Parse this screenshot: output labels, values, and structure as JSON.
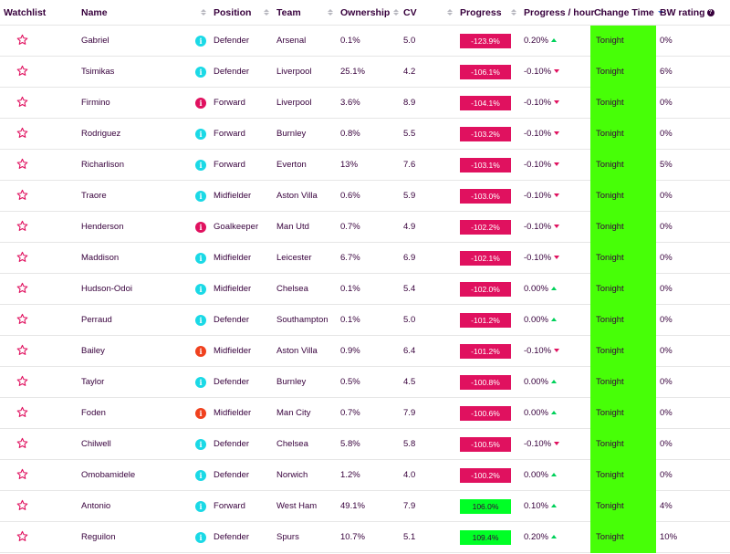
{
  "colors": {
    "neg_progress": "#e0115f",
    "pos_progress": "#00ff26",
    "change_time_bg": "#47ff07",
    "info_cyan": "#1ad9e6",
    "info_pink": "#e0115f",
    "info_orange": "#f0411e",
    "text": "#37003c"
  },
  "headers": {
    "watchlist": "Watchlist",
    "name": "Name",
    "position": "Position",
    "team": "Team",
    "ownership": "Ownership",
    "cv": "CV",
    "progress": "Progress",
    "progress_hour": "Progress / hour",
    "change_time": "Change Time",
    "bw_rating": "BW rating"
  },
  "rows": [
    {
      "name": "Gabriel",
      "info": "cyan",
      "position": "Defender",
      "team": "Arsenal",
      "ownership": "0.1%",
      "cv": "5.0",
      "progress": "-123.9%",
      "progress_sign": "neg",
      "progress_hour": "0.20%",
      "trend": "up",
      "change_time": "Tonight",
      "bw": "0%"
    },
    {
      "name": "Tsimikas",
      "info": "cyan",
      "position": "Defender",
      "team": "Liverpool",
      "ownership": "25.1%",
      "cv": "4.2",
      "progress": "-106.1%",
      "progress_sign": "neg",
      "progress_hour": "-0.10%",
      "trend": "down",
      "change_time": "Tonight",
      "bw": "6%"
    },
    {
      "name": "Firmino",
      "info": "pink",
      "position": "Forward",
      "team": "Liverpool",
      "ownership": "3.6%",
      "cv": "8.9",
      "progress": "-104.1%",
      "progress_sign": "neg",
      "progress_hour": "-0.10%",
      "trend": "down",
      "change_time": "Tonight",
      "bw": "0%"
    },
    {
      "name": "Rodriguez",
      "info": "cyan",
      "position": "Forward",
      "team": "Burnley",
      "ownership": "0.8%",
      "cv": "5.5",
      "progress": "-103.2%",
      "progress_sign": "neg",
      "progress_hour": "-0.10%",
      "trend": "down",
      "change_time": "Tonight",
      "bw": "0%"
    },
    {
      "name": "Richarlison",
      "info": "cyan",
      "position": "Forward",
      "team": "Everton",
      "ownership": "13%",
      "cv": "7.6",
      "progress": "-103.1%",
      "progress_sign": "neg",
      "progress_hour": "-0.10%",
      "trend": "down",
      "change_time": "Tonight",
      "bw": "5%"
    },
    {
      "name": "Traore",
      "info": "cyan",
      "position": "Midfielder",
      "team": "Aston Villa",
      "ownership": "0.6%",
      "cv": "5.9",
      "progress": "-103.0%",
      "progress_sign": "neg",
      "progress_hour": "-0.10%",
      "trend": "down",
      "change_time": "Tonight",
      "bw": "0%"
    },
    {
      "name": "Henderson",
      "info": "pink",
      "position": "Goalkeeper",
      "team": "Man Utd",
      "ownership": "0.7%",
      "cv": "4.9",
      "progress": "-102.2%",
      "progress_sign": "neg",
      "progress_hour": "-0.10%",
      "trend": "down",
      "change_time": "Tonight",
      "bw": "0%"
    },
    {
      "name": "Maddison",
      "info": "cyan",
      "position": "Midfielder",
      "team": "Leicester",
      "ownership": "6.7%",
      "cv": "6.9",
      "progress": "-102.1%",
      "progress_sign": "neg",
      "progress_hour": "-0.10%",
      "trend": "down",
      "change_time": "Tonight",
      "bw": "0%"
    },
    {
      "name": "Hudson-Odoi",
      "info": "cyan",
      "position": "Midfielder",
      "team": "Chelsea",
      "ownership": "0.1%",
      "cv": "5.4",
      "progress": "-102.0%",
      "progress_sign": "neg",
      "progress_hour": "0.00%",
      "trend": "up",
      "change_time": "Tonight",
      "bw": "0%"
    },
    {
      "name": "Perraud",
      "info": "cyan",
      "position": "Defender",
      "team": "Southampton",
      "ownership": "0.1%",
      "cv": "5.0",
      "progress": "-101.2%",
      "progress_sign": "neg",
      "progress_hour": "0.00%",
      "trend": "up",
      "change_time": "Tonight",
      "bw": "0%"
    },
    {
      "name": "Bailey",
      "info": "orange",
      "position": "Midfielder",
      "team": "Aston Villa",
      "ownership": "0.9%",
      "cv": "6.4",
      "progress": "-101.2%",
      "progress_sign": "neg",
      "progress_hour": "-0.10%",
      "trend": "down",
      "change_time": "Tonight",
      "bw": "0%"
    },
    {
      "name": "Taylor",
      "info": "cyan",
      "position": "Defender",
      "team": "Burnley",
      "ownership": "0.5%",
      "cv": "4.5",
      "progress": "-100.8%",
      "progress_sign": "neg",
      "progress_hour": "0.00%",
      "trend": "up",
      "change_time": "Tonight",
      "bw": "0%"
    },
    {
      "name": "Foden",
      "info": "orange",
      "position": "Midfielder",
      "team": "Man City",
      "ownership": "0.7%",
      "cv": "7.9",
      "progress": "-100.6%",
      "progress_sign": "neg",
      "progress_hour": "0.00%",
      "trend": "up",
      "change_time": "Tonight",
      "bw": "0%"
    },
    {
      "name": "Chilwell",
      "info": "cyan",
      "position": "Defender",
      "team": "Chelsea",
      "ownership": "5.8%",
      "cv": "5.8",
      "progress": "-100.5%",
      "progress_sign": "neg",
      "progress_hour": "-0.10%",
      "trend": "down",
      "change_time": "Tonight",
      "bw": "0%"
    },
    {
      "name": "Omobamidele",
      "info": "cyan",
      "position": "Defender",
      "team": "Norwich",
      "ownership": "1.2%",
      "cv": "4.0",
      "progress": "-100.2%",
      "progress_sign": "neg",
      "progress_hour": "0.00%",
      "trend": "up",
      "change_time": "Tonight",
      "bw": "0%"
    },
    {
      "name": "Antonio",
      "info": "cyan",
      "position": "Forward",
      "team": "West Ham",
      "ownership": "49.1%",
      "cv": "7.9",
      "progress": "106.0%",
      "progress_sign": "pos",
      "progress_hour": "0.10%",
      "trend": "up",
      "change_time": "Tonight",
      "bw": "4%"
    },
    {
      "name": "Reguilon",
      "info": "cyan",
      "position": "Defender",
      "team": "Spurs",
      "ownership": "10.7%",
      "cv": "5.1",
      "progress": "109.4%",
      "progress_sign": "pos",
      "progress_hour": "0.20%",
      "trend": "up",
      "change_time": "Tonight",
      "bw": "10%"
    }
  ]
}
